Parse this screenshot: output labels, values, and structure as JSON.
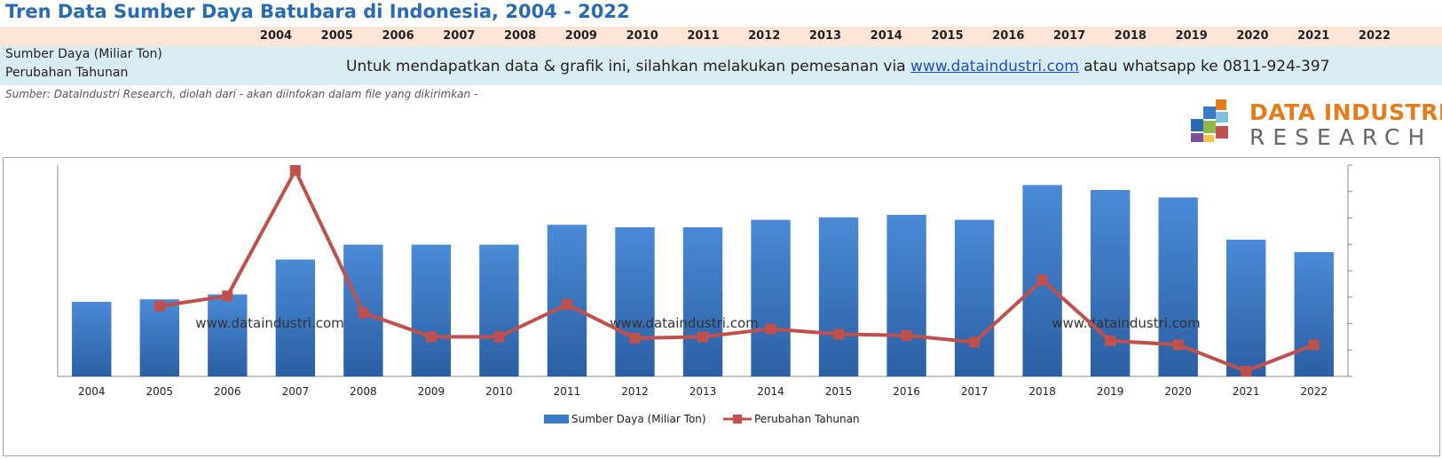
{
  "title": "Tren Data Sumber Daya Batubara di Indonesia, 2004 - 2022",
  "table": {
    "row_labels": [
      "Sumber Daya (Miliar Ton)",
      "Perubahan Tahunan"
    ],
    "notice_prefix": "Untuk mendapatkan data & grafik ini, silahkan melakukan pemesanan via ",
    "notice_link": "www.dataindustri.com",
    "notice_suffix": " atau whatsapp ke 0811-924-397"
  },
  "source": "Sumber: DataIndustri Research, diolah dari - akan diinfokan dalam file yang dikirimkan -",
  "logo": {
    "line1": "DATA INDUSTRI",
    "line2": "RESEARCH"
  },
  "colors": {
    "bar": "#3a7bc8",
    "line": "#c0504d",
    "title": "#2a6ab5",
    "logo_orange": "#e57b1b"
  },
  "chart_data": {
    "type": "bar",
    "categories": [
      "2004",
      "2005",
      "2006",
      "2007",
      "2008",
      "2009",
      "2010",
      "2011",
      "2012",
      "2013",
      "2014",
      "2015",
      "2016",
      "2017",
      "2018",
      "2019",
      "2020",
      "2021",
      "2022"
    ],
    "series": [
      {
        "name": "Sumber Daya (Miliar Ton)",
        "type": "bar",
        "axis": "left",
        "values": [
          30,
          31,
          33,
          47,
          53,
          53,
          53,
          61,
          60,
          60,
          63,
          64,
          65,
          63,
          77,
          75,
          72,
          55,
          50
        ]
      },
      {
        "name": "Perubahan Tahunan",
        "type": "line",
        "axis": "right",
        "values": [
          null,
          3.2,
          11,
          106,
          -1.8,
          -20,
          -20,
          4.5,
          -21,
          -20,
          -14,
          -18,
          -19,
          -24,
          23,
          -23,
          -26,
          -46,
          -26
        ]
      }
    ],
    "left_ylim": [
      0,
      85
    ],
    "right_ylim": [
      -50,
      110
    ],
    "watermarks": [
      "www.dataindustri.com",
      "www.dataindustri.com",
      "www.dataindustri.com"
    ],
    "legend_position": "bottom-center",
    "gridlines": false
  }
}
